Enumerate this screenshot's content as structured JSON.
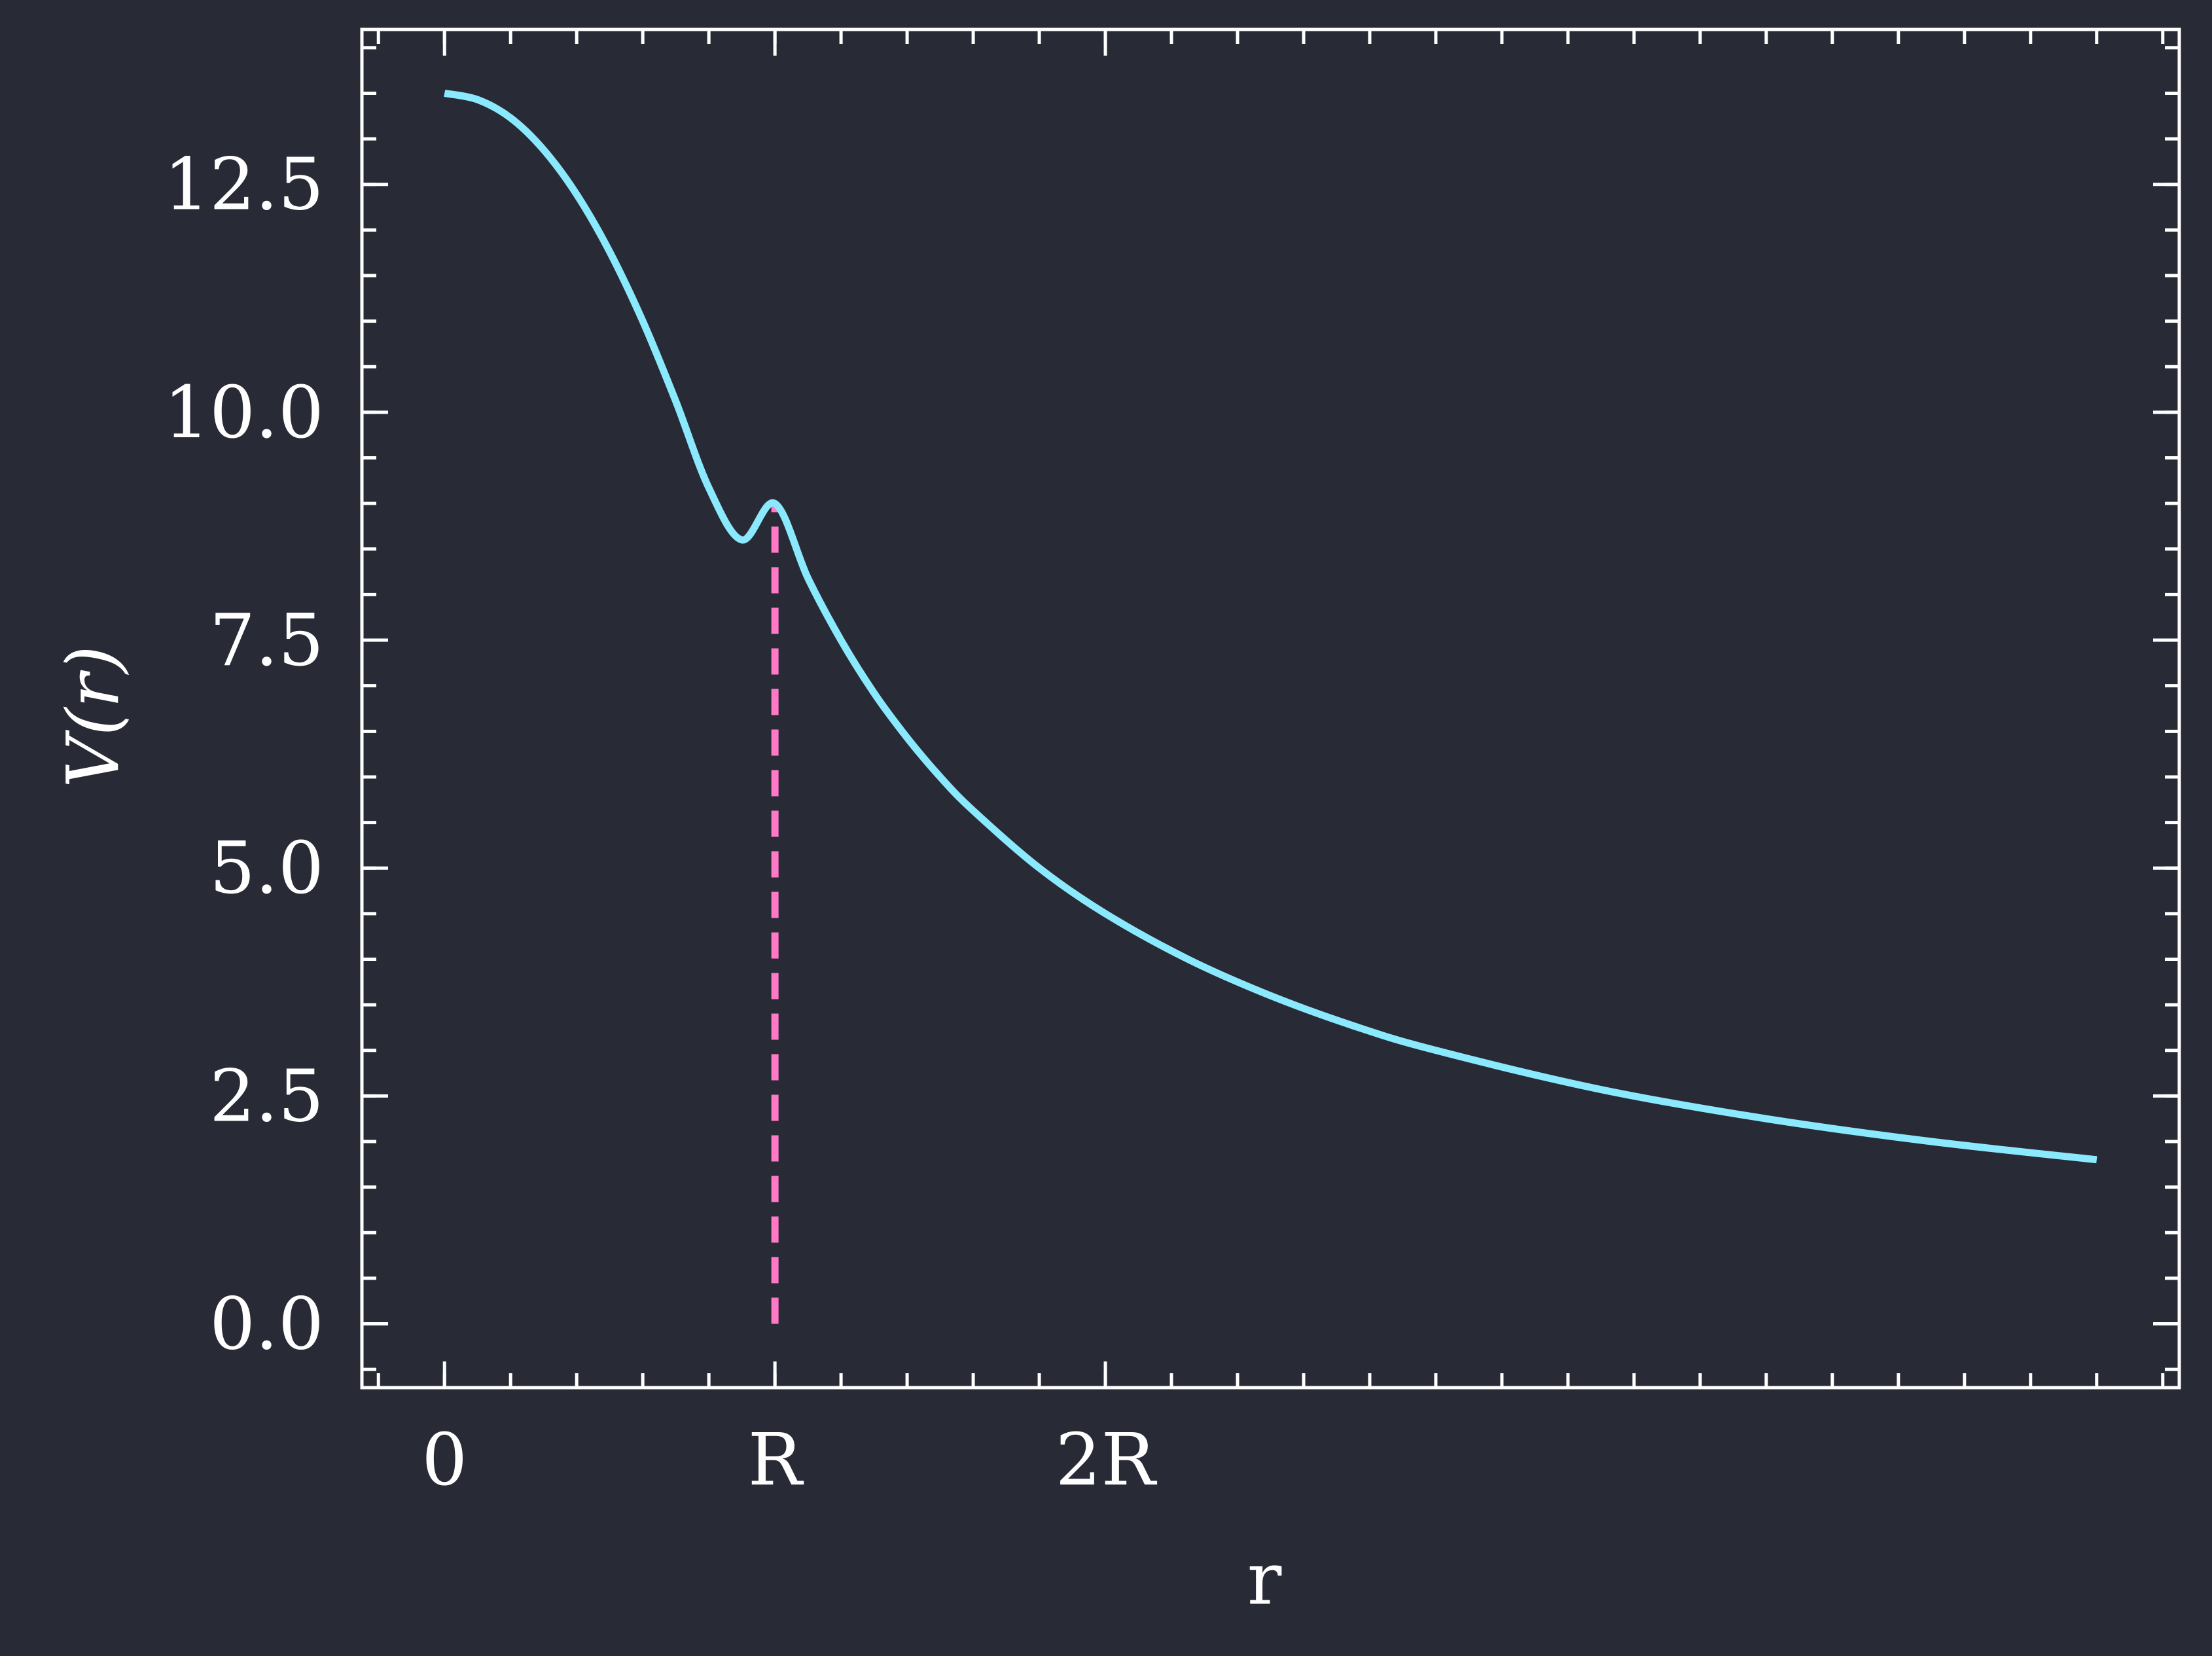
{
  "colors": {
    "background": "#282a36",
    "axes": "#ffffff",
    "curve": "#8be9fd",
    "marker_line": "#ff79c6"
  },
  "chart_data": {
    "type": "line",
    "xlabel": "r",
    "ylabel": "V(r)",
    "xlim": [
      -0.25,
      5.25
    ],
    "ylim": [
      -0.7,
      14.2
    ],
    "x_ticks": [
      {
        "value": 0,
        "label": "0"
      },
      {
        "value": 1,
        "label": "R"
      },
      {
        "value": 2,
        "label": "2R"
      }
    ],
    "y_ticks": [
      {
        "value": 0,
        "label": "0.0"
      },
      {
        "value": 2.5,
        "label": "2.5"
      },
      {
        "value": 5,
        "label": "5.0"
      },
      {
        "value": 7.5,
        "label": "7.5"
      },
      {
        "value": 10,
        "label": "10.0"
      },
      {
        "value": 12.5,
        "label": "12.5"
      }
    ],
    "x_minor_step": 0.2,
    "y_minor_step": 0.5,
    "series": [
      {
        "style": "solid",
        "x": [
          0,
          0.1,
          0.2,
          0.3,
          0.4,
          0.5,
          0.6,
          0.7,
          0.8,
          0.9,
          1.0,
          1.1,
          1.2,
          1.3,
          1.4,
          1.5,
          1.6,
          1.8,
          2.0,
          2.25,
          2.5,
          2.75,
          3.0,
          3.5,
          4.0,
          4.5,
          5.0
        ],
        "y": [
          13.5,
          13.43,
          13.23,
          12.88,
          12.39,
          11.76,
          11.0,
          10.12,
          9.17,
          8.6,
          9.0,
          8.18,
          7.5,
          6.92,
          6.43,
          6.0,
          5.63,
          5.0,
          4.5,
          4.0,
          3.6,
          3.27,
          3.0,
          2.57,
          2.25,
          2.0,
          1.8
        ]
      }
    ],
    "vlines": [
      {
        "x": 1,
        "y0": 0,
        "y1": 9.0,
        "style": "dashed"
      }
    ]
  }
}
